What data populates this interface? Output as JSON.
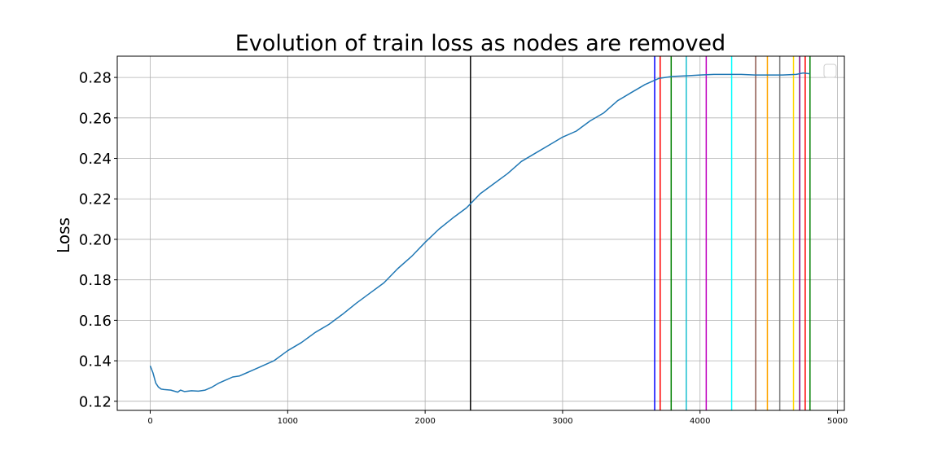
{
  "chart_data": {
    "type": "line",
    "title": "Evolution of train loss as nodes are removed",
    "xlabel": "",
    "ylabel": "Loss",
    "xlim": [
      -240,
      5050
    ],
    "ylim": [
      0.1155,
      0.2905
    ],
    "xticks": [
      0,
      1000,
      2000,
      3000,
      4000,
      5000
    ],
    "xtick_labels": [
      "0",
      "1000",
      "2000",
      "3000",
      "4000",
      "5000"
    ],
    "yticks": [
      0.12,
      0.14,
      0.16,
      0.18,
      0.2,
      0.22,
      0.24,
      0.26,
      0.28
    ],
    "ytick_labels": [
      "0.12",
      "0.14",
      "0.16",
      "0.18",
      "0.20",
      "0.22",
      "0.24",
      "0.26",
      "0.28"
    ],
    "grid": true,
    "legend": "top-right (empty)",
    "series": [
      {
        "color": "#1f77b4",
        "x": [
          0,
          20,
          40,
          60,
          80,
          100,
          150,
          200,
          220,
          250,
          300,
          350,
          400,
          450,
          500,
          550,
          600,
          650,
          700,
          750,
          800,
          850,
          900,
          1000,
          1100,
          1200,
          1300,
          1400,
          1500,
          1600,
          1700,
          1800,
          1900,
          2000,
          2100,
          2200,
          2300,
          2400,
          2500,
          2600,
          2700,
          2800,
          2900,
          3000,
          3100,
          3200,
          3300,
          3400,
          3500,
          3600,
          3700,
          3800,
          3900,
          4000,
          4100,
          4200,
          4300,
          4400,
          4500,
          4600,
          4700,
          4750,
          4800
        ],
        "y": [
          0.1375,
          0.134,
          0.129,
          0.127,
          0.126,
          0.1258,
          0.1255,
          0.1245,
          0.1255,
          0.1248,
          0.1252,
          0.125,
          0.1255,
          0.127,
          0.129,
          0.1305,
          0.132,
          0.1325,
          0.134,
          0.1355,
          0.137,
          0.1385,
          0.14,
          0.145,
          0.149,
          0.154,
          0.158,
          0.163,
          0.1685,
          0.1735,
          0.1785,
          0.1855,
          0.1915,
          0.1985,
          0.205,
          0.2105,
          0.2155,
          0.2225,
          0.2275,
          0.2325,
          0.2385,
          0.2425,
          0.2465,
          0.2505,
          0.2535,
          0.2585,
          0.2625,
          0.2685,
          0.2725,
          0.2765,
          0.2795,
          0.2805,
          0.2808,
          0.2812,
          0.2815,
          0.2815,
          0.2815,
          0.2812,
          0.2812,
          0.2812,
          0.2815,
          0.2822,
          0.2818
        ]
      }
    ],
    "vertical_lines": [
      {
        "x": 2330,
        "color": "#000000"
      },
      {
        "x": 3670,
        "color": "#0000ff"
      },
      {
        "x": 3710,
        "color": "#ff0000"
      },
      {
        "x": 3790,
        "color": "#008000"
      },
      {
        "x": 3900,
        "color": "#17becf"
      },
      {
        "x": 4045,
        "color": "#bf00bf"
      },
      {
        "x": 4230,
        "color": "#00ffff"
      },
      {
        "x": 4405,
        "color": "#8c564b"
      },
      {
        "x": 4490,
        "color": "#ffa500"
      },
      {
        "x": 4580,
        "color": "#7f7f7f"
      },
      {
        "x": 4680,
        "color": "#ffd700"
      },
      {
        "x": 4725,
        "color": "#800080"
      },
      {
        "x": 4765,
        "color": "#ff0000"
      },
      {
        "x": 4800,
        "color": "#008000"
      }
    ]
  }
}
